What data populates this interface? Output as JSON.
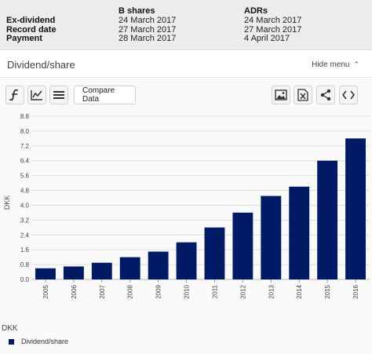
{
  "dates_table": {
    "headers": {
      "b_shares": "B shares",
      "adrs": "ADRs"
    },
    "rows": [
      {
        "label": "Ex-dividend",
        "b_shares": "24 March 2017",
        "adrs": "24 March 2017"
      },
      {
        "label": "Record date",
        "b_shares": "27 March 2017",
        "adrs": "27 March 2017"
      },
      {
        "label": "Payment",
        "b_shares": "28 March 2017",
        "adrs": "4 April 2017"
      }
    ]
  },
  "panel": {
    "title": "Dividend/share",
    "hide_menu_label": "Hide menu"
  },
  "toolbar": {
    "left_icons": [
      "fundamentals-icon",
      "line-chart-icon",
      "table-view-icon"
    ],
    "compare_label": "Compare Data",
    "right_icons": [
      "image-export-icon",
      "excel-export-icon",
      "share-icon",
      "embed-code-icon"
    ]
  },
  "chart_data": {
    "type": "bar",
    "categories": [
      "2005",
      "2006",
      "2007",
      "2008",
      "2009",
      "2010",
      "2011",
      "2012",
      "2013",
      "2014",
      "2015",
      "2016"
    ],
    "series": [
      {
        "name": "Dividend/share",
        "values": [
          0.6,
          0.7,
          0.9,
          1.2,
          1.5,
          2.0,
          2.8,
          3.6,
          4.5,
          5.0,
          6.4,
          7.6
        ]
      }
    ],
    "ylabel": "DKK",
    "yticks": [
      "0.0",
      "0.8",
      "1.6",
      "2.4",
      "3.2",
      "4.0",
      "4.8",
      "5.6",
      "6.4",
      "7.2",
      "8.0",
      "8.8"
    ],
    "ylim": [
      0,
      8.8
    ],
    "grid": true,
    "bar_color": "#001a66",
    "legend_position": "bottom-left",
    "legend_unit": "DKK"
  }
}
